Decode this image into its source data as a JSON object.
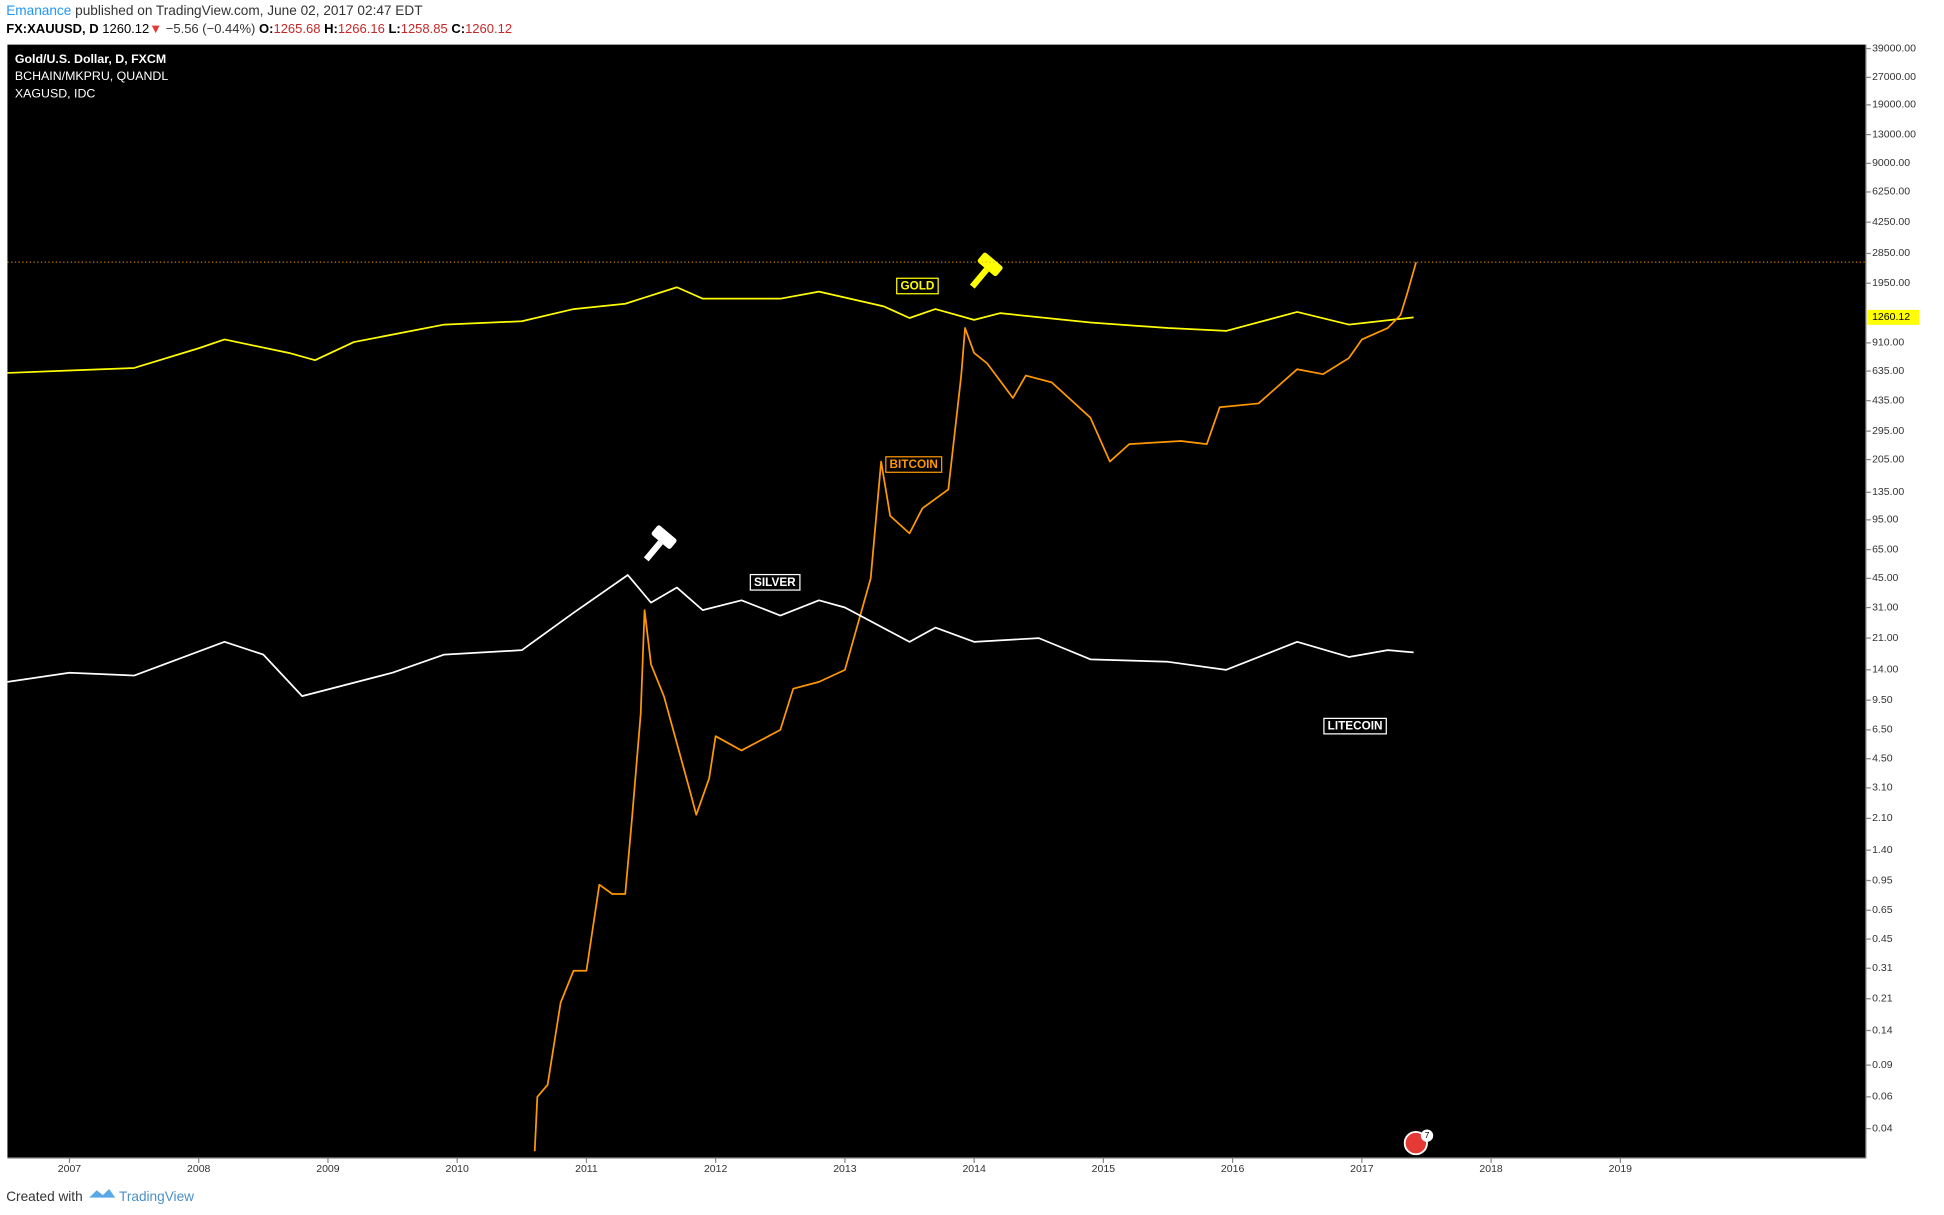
{
  "header": {
    "author": "Emanance",
    "published": "published on TradingView.com, June 02, 2017 02:47 EDT",
    "symbol": "FX:XAUUSD, D",
    "last": 1260.12,
    "arrow": "▼",
    "change": "−5.56 (−0.44%)",
    "ohlc": [
      {
        "label": "O:",
        "value": 1265.68
      },
      {
        "label": "H:",
        "value": 1266.16
      },
      {
        "label": "L:",
        "value": 1258.85
      },
      {
        "label": "C:",
        "value": 1260.12
      }
    ]
  },
  "chart_data": {
    "type": "line",
    "log": true,
    "background": "#000000",
    "xlim": [
      2006.52,
      2020.9
    ],
    "xticks": [
      2007,
      2008,
      2009,
      2010,
      2011,
      2012,
      2013,
      2014,
      2015,
      2016,
      2017,
      2018,
      2019
    ],
    "ylim": [
      0.0275,
      41000
    ],
    "yticks": [
      {
        "value": 39000,
        "label": "39000.00"
      },
      {
        "value": 27000,
        "label": "27000.00"
      },
      {
        "value": 19000,
        "label": "19000.00"
      },
      {
        "value": 13000,
        "label": "13000.00"
      },
      {
        "value": 9000,
        "label": "9000.00"
      },
      {
        "value": 6250,
        "label": "6250.00"
      },
      {
        "value": 4250,
        "label": "4250.00"
      },
      {
        "value": 2850,
        "label": "2850.00"
      },
      {
        "value": 1950,
        "label": "1950.00"
      },
      {
        "value": 910,
        "label": "910.00"
      },
      {
        "value": 635,
        "label": "635.00"
      },
      {
        "value": 435,
        "label": "435.00"
      },
      {
        "value": 295,
        "label": "295.00"
      },
      {
        "value": 205,
        "label": "205.00"
      },
      {
        "value": 135,
        "label": "135.00"
      },
      {
        "value": 95,
        "label": "95.00"
      },
      {
        "value": 65,
        "label": "65.00"
      },
      {
        "value": 45,
        "label": "45.00"
      },
      {
        "value": 31,
        "label": "31.00"
      },
      {
        "value": 21,
        "label": "21.00"
      },
      {
        "value": 14,
        "label": "14.00"
      },
      {
        "value": 9.5,
        "label": "9.50"
      },
      {
        "value": 6.5,
        "label": "6.50"
      },
      {
        "value": 4.5,
        "label": "4.50"
      },
      {
        "value": 3.1,
        "label": "3.10"
      },
      {
        "value": 2.1,
        "label": "2.10"
      },
      {
        "value": 1.4,
        "label": "1.40"
      },
      {
        "value": 0.95,
        "label": "0.95"
      },
      {
        "value": 0.65,
        "label": "0.65"
      },
      {
        "value": 0.45,
        "label": "0.45"
      },
      {
        "value": 0.31,
        "label": "0.31"
      },
      {
        "value": 0.21,
        "label": "0.21"
      },
      {
        "value": 0.14,
        "label": "0.14"
      },
      {
        "value": 0.09,
        "label": "0.09"
      },
      {
        "value": 0.06,
        "label": "0.06"
      },
      {
        "value": 0.04,
        "label": "0.04"
      }
    ],
    "series": [
      {
        "name": "Gold/U.S. Dollar, D, FXCM",
        "color": "#ffff00",
        "x": [
          2006.52,
          2007.0,
          2007.5,
          2008.0,
          2008.2,
          2008.7,
          2008.9,
          2009.2,
          2009.9,
          2010.5,
          2010.9,
          2011.3,
          2011.7,
          2011.9,
          2012.5,
          2012.8,
          2013.3,
          2013.5,
          2013.7,
          2014.0,
          2014.2,
          2014.9,
          2015.5,
          2015.95,
          2016.5,
          2016.9,
          2017.4
        ],
        "values": [
          620,
          640,
          660,
          850,
          950,
          800,
          730,
          920,
          1150,
          1200,
          1400,
          1500,
          1850,
          1600,
          1600,
          1750,
          1450,
          1250,
          1400,
          1220,
          1330,
          1180,
          1100,
          1060,
          1350,
          1150,
          1260.12
        ]
      },
      {
        "name": "BCHAIN/MKPRU, QUANDL",
        "color": "#ff9800",
        "x": [
          2010.6,
          2010.62,
          2010.7,
          2010.8,
          2010.9,
          2011.0,
          2011.1,
          2011.2,
          2011.3,
          2011.35,
          2011.42,
          2011.45,
          2011.5,
          2011.6,
          2011.8,
          2011.85,
          2011.95,
          2012.0,
          2012.2,
          2012.5,
          2012.6,
          2012.8,
          2013.0,
          2013.2,
          2013.28,
          2013.35,
          2013.5,
          2013.6,
          2013.8,
          2013.9,
          2013.93,
          2014.0,
          2014.1,
          2014.3,
          2014.4,
          2014.6,
          2014.9,
          2015.05,
          2015.2,
          2015.6,
          2015.8,
          2015.9,
          2016.2,
          2016.5,
          2016.7,
          2016.9,
          2017.0,
          2017.2,
          2017.3,
          2017.35,
          2017.42
        ],
        "values": [
          0.03,
          0.06,
          0.07,
          0.2,
          0.3,
          0.3,
          0.9,
          0.8,
          0.8,
          2.0,
          8,
          30,
          15,
          10,
          3,
          2.2,
          3.5,
          6,
          5,
          6.5,
          11,
          12,
          14,
          45,
          200,
          100,
          80,
          110,
          140,
          600,
          1100,
          800,
          700,
          450,
          600,
          550,
          350,
          200,
          250,
          260,
          250,
          400,
          420,
          650,
          610,
          750,
          950,
          1100,
          1300,
          1700,
          2550
        ]
      },
      {
        "name": "XAGUSD, IDC",
        "color": "#ffffff",
        "x": [
          2006.52,
          2007.0,
          2007.5,
          2008.2,
          2008.5,
          2008.8,
          2009.5,
          2009.9,
          2010.5,
          2010.9,
          2011.32,
          2011.5,
          2011.7,
          2011.9,
          2012.2,
          2012.5,
          2012.8,
          2013.0,
          2013.5,
          2013.7,
          2014.0,
          2014.5,
          2014.9,
          2015.5,
          2015.95,
          2016.5,
          2016.9,
          2017.2,
          2017.4
        ],
        "values": [
          12,
          13.5,
          13,
          20,
          17,
          10,
          13.5,
          17,
          18,
          29,
          47,
          33,
          40,
          30,
          34,
          28,
          34,
          31,
          20,
          24,
          20,
          21,
          16,
          15.5,
          14,
          20,
          16.5,
          18,
          17.5
        ]
      }
    ],
    "annotations": [
      "GOLD",
      "BITCOIN",
      "SILVER",
      "LITECOIN"
    ],
    "event_badge": "7"
  },
  "footer": {
    "created": "Created with",
    "brand": "TradingView"
  }
}
